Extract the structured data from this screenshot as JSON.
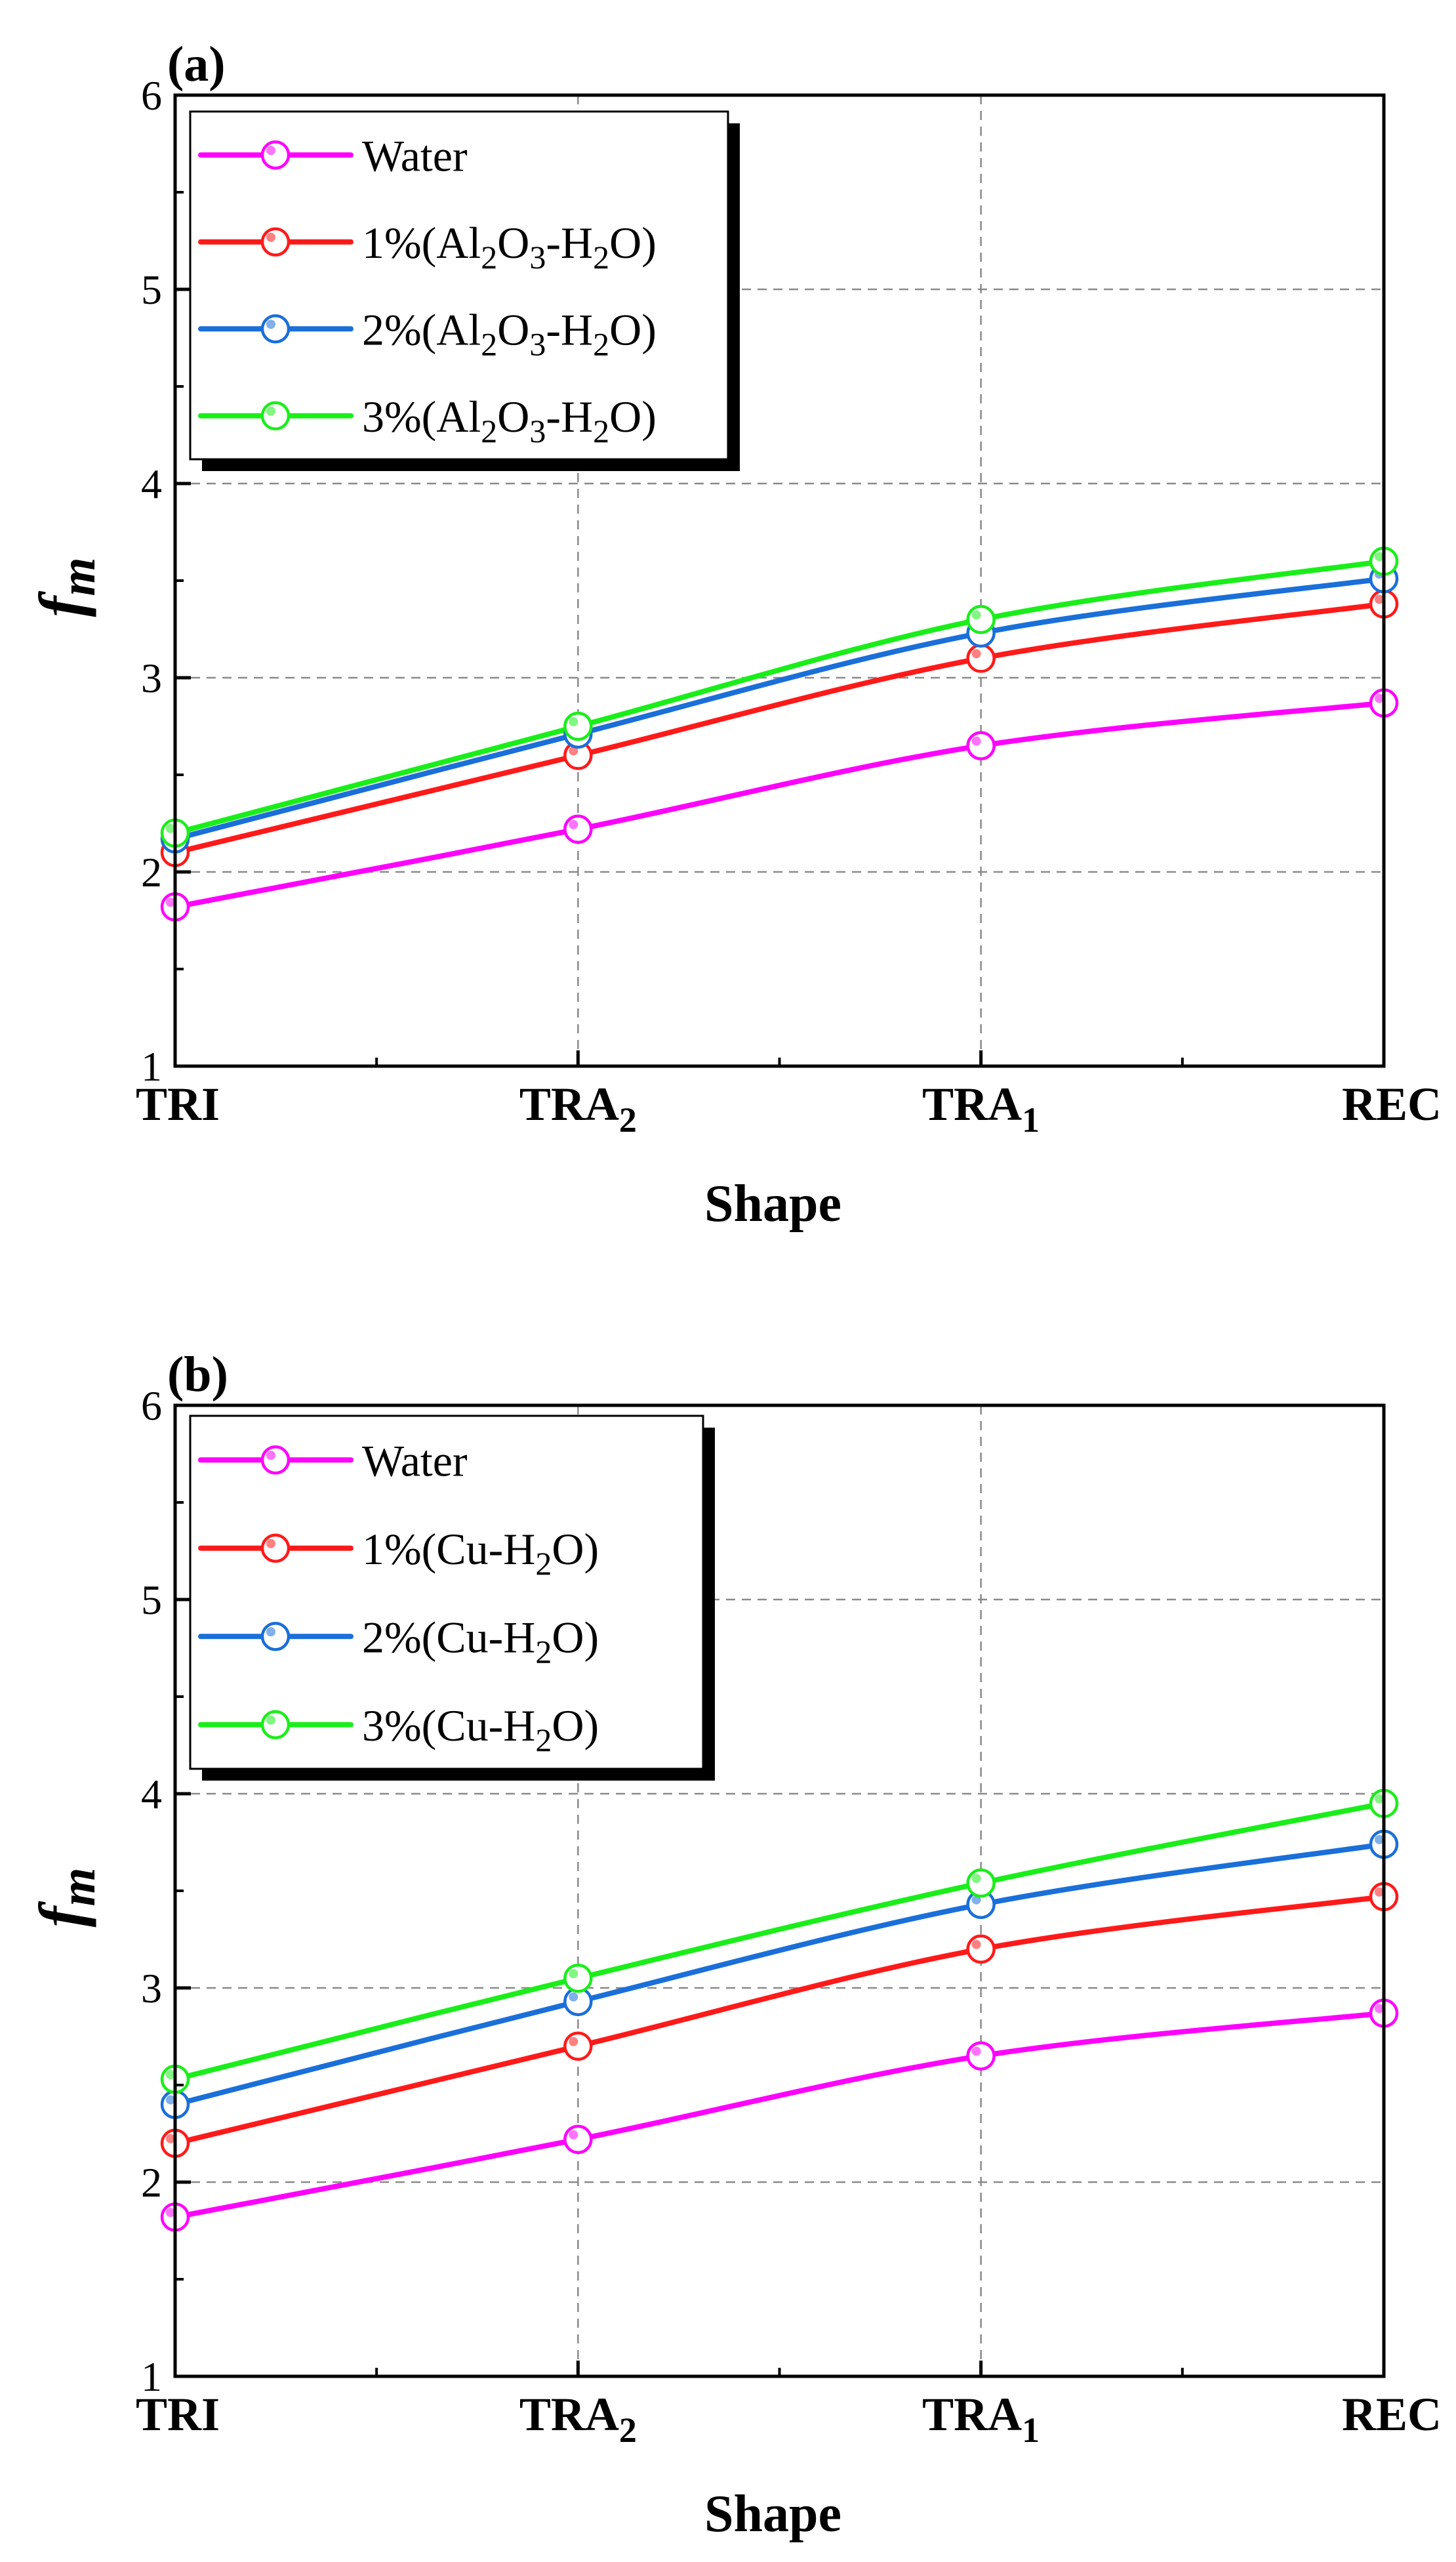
{
  "chart_data": [
    {
      "type": "line",
      "panel_label": "(a)",
      "xlabel": "Shape",
      "ylabel": "f",
      "ylabel_sub": "m",
      "categories": [
        {
          "base": "TRI",
          "sub": ""
        },
        {
          "base": "TRA",
          "sub": "2"
        },
        {
          "base": "TRA",
          "sub": "1"
        },
        {
          "base": "REC",
          "sub": ""
        }
      ],
      "ylim": [
        1,
        6
      ],
      "yticks": [
        "1",
        "2",
        "3",
        "4",
        "5",
        "6"
      ],
      "grid": "dashed",
      "legend_position": "top-left",
      "series": [
        {
          "name": "Water",
          "parts": [
            [
              "Water",
              ""
            ]
          ],
          "color": "#ff00ff",
          "values": [
            1.82,
            2.22,
            2.65,
            2.87
          ]
        },
        {
          "name": "1%(Al2O3-H2O)",
          "parts": [
            [
              "1%(Al",
              ""
            ],
            [
              "2",
              "sub"
            ],
            [
              "O",
              ""
            ],
            [
              "3",
              "sub"
            ],
            [
              "-H",
              ""
            ],
            [
              "2",
              "sub"
            ],
            [
              "O)",
              ""
            ]
          ],
          "color": "#ff1a1a",
          "values": [
            2.1,
            2.6,
            3.1,
            3.38
          ]
        },
        {
          "name": "2%(Al2O3-H2O)",
          "parts": [
            [
              "2%(Al",
              ""
            ],
            [
              "2",
              "sub"
            ],
            [
              "O",
              ""
            ],
            [
              "3",
              "sub"
            ],
            [
              "-H",
              ""
            ],
            [
              "2",
              "sub"
            ],
            [
              "O)",
              ""
            ]
          ],
          "color": "#1a6fd9",
          "values": [
            2.17,
            2.71,
            3.23,
            3.51
          ]
        },
        {
          "name": "3%(Al2O3-H2O)",
          "parts": [
            [
              "3%(Al",
              ""
            ],
            [
              "2",
              "sub"
            ],
            [
              "O",
              ""
            ],
            [
              "3",
              "sub"
            ],
            [
              "-H",
              ""
            ],
            [
              "2",
              "sub"
            ],
            [
              "O)",
              ""
            ]
          ],
          "color": "#1aee1a",
          "values": [
            2.2,
            2.75,
            3.3,
            3.6
          ]
        }
      ]
    },
    {
      "type": "line",
      "panel_label": "(b)",
      "xlabel": "Shape",
      "ylabel": "f",
      "ylabel_sub": "m",
      "categories": [
        {
          "base": "TRI",
          "sub": ""
        },
        {
          "base": "TRA",
          "sub": "2"
        },
        {
          "base": "TRA",
          "sub": "1"
        },
        {
          "base": "REC",
          "sub": ""
        }
      ],
      "ylim": [
        1,
        6
      ],
      "yticks": [
        "1",
        "2",
        "3",
        "4",
        "5",
        "6"
      ],
      "grid": "dashed",
      "legend_position": "top-left",
      "series": [
        {
          "name": "Water",
          "parts": [
            [
              "Water",
              ""
            ]
          ],
          "color": "#ff00ff",
          "values": [
            1.82,
            2.22,
            2.65,
            2.87
          ]
        },
        {
          "name": "1%(Cu-H2O)",
          "parts": [
            [
              "1%(Cu-H",
              ""
            ],
            [
              "2",
              "sub"
            ],
            [
              "O)",
              ""
            ]
          ],
          "color": "#ff1a1a",
          "values": [
            2.2,
            2.7,
            3.2,
            3.47
          ]
        },
        {
          "name": "2%(Cu-H2O)",
          "parts": [
            [
              "2%(Cu-H",
              ""
            ],
            [
              "2",
              "sub"
            ],
            [
              "O)",
              ""
            ]
          ],
          "color": "#1a6fd9",
          "values": [
            2.4,
            2.93,
            3.43,
            3.74
          ]
        },
        {
          "name": "3%(Cu-H2O)",
          "parts": [
            [
              "3%(Cu-H",
              ""
            ],
            [
              "2",
              "sub"
            ],
            [
              "O)",
              ""
            ]
          ],
          "color": "#1aee1a",
          "values": [
            2.53,
            3.05,
            3.54,
            3.95
          ]
        }
      ]
    }
  ]
}
